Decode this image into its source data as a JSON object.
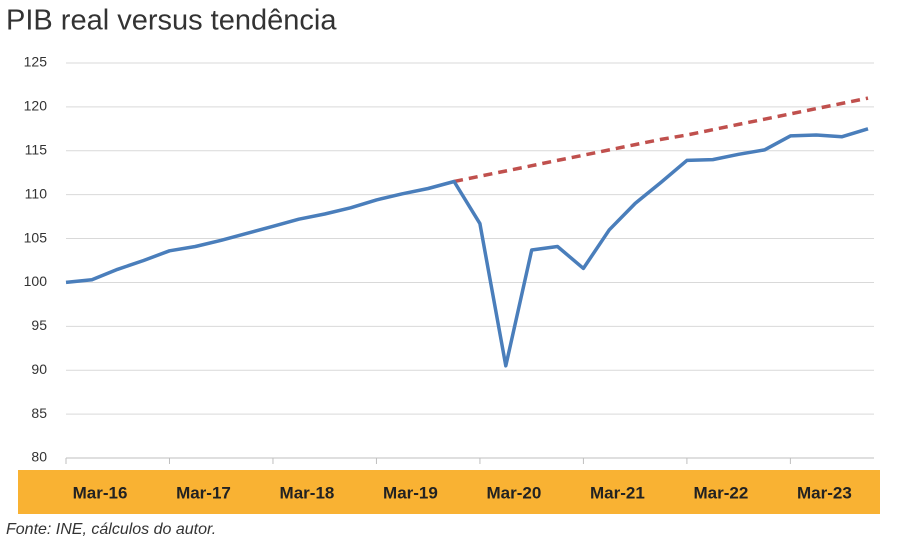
{
  "chart_data": {
    "type": "line",
    "title": "PIB real versus tendência",
    "source": "Fonte: INE, cálculos do autor.",
    "categories": [
      "Mar-16",
      null,
      null,
      null,
      "Mar-17",
      null,
      null,
      null,
      "Mar-18",
      null,
      null,
      null,
      "Mar-19",
      null,
      null,
      null,
      "Mar-20",
      null,
      null,
      null,
      "Mar-21",
      null,
      null,
      null,
      "Mar-22",
      null,
      null,
      null,
      "Mar-23",
      null,
      null,
      null
    ],
    "series": [
      {
        "color": "#4a7ebb",
        "style": "solid",
        "values": [
          100.0,
          100.3,
          101.5,
          102.5,
          103.6,
          104.1,
          104.8,
          105.6,
          106.4,
          107.2,
          107.8,
          108.5,
          109.4,
          110.1,
          110.7,
          111.5,
          106.7,
          90.5,
          103.7,
          104.1,
          101.6,
          106.0,
          109.0,
          111.4,
          113.9,
          114.0,
          114.6,
          115.1,
          116.7,
          116.8,
          116.6,
          117.5
        ]
      },
      {
        "color": "#c0504d",
        "style": "dashed",
        "values": [
          null,
          null,
          null,
          null,
          null,
          null,
          null,
          null,
          null,
          null,
          null,
          null,
          null,
          null,
          null,
          111.5,
          112.1,
          112.7,
          113.3,
          113.9,
          114.5,
          115.1,
          115.7,
          116.3,
          116.8,
          117.4,
          118.0,
          118.6,
          119.2,
          119.8,
          120.4,
          121.0
        ]
      }
    ],
    "ylim": [
      80,
      125
    ],
    "yticks": [
      80,
      85,
      90,
      95,
      100,
      105,
      110,
      115,
      120,
      125
    ],
    "grid": true
  }
}
